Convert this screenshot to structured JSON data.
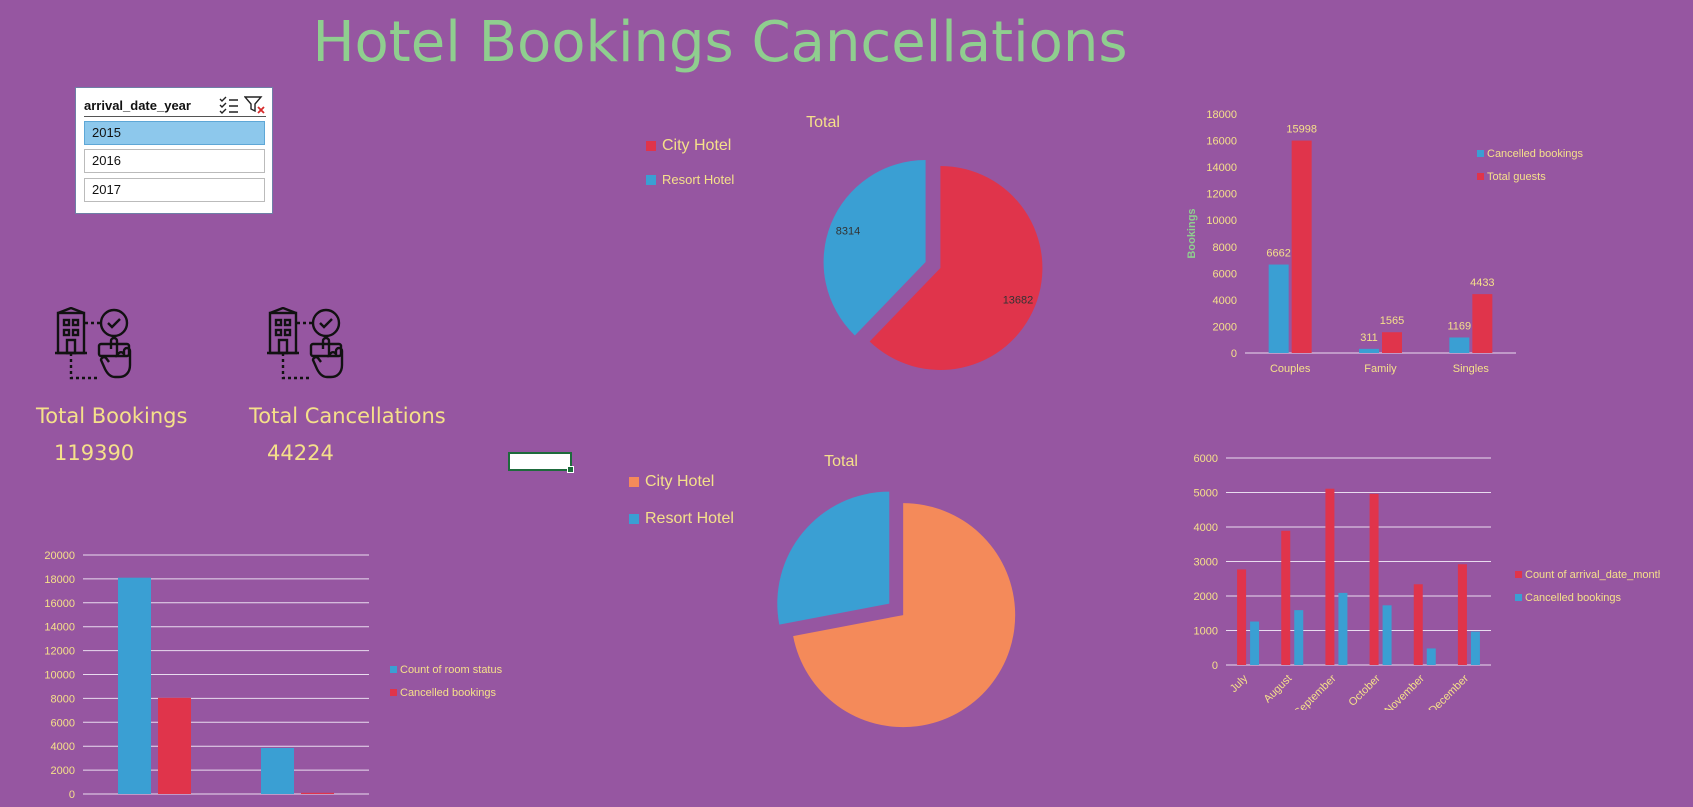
{
  "dashboard": {
    "title": "Hotel Bookings Cancellations"
  },
  "slicer": {
    "title": "arrival_date_year",
    "items": [
      "2015",
      "2016",
      "2017"
    ],
    "selected": "2015",
    "icons": [
      "multi-select-icon",
      "clear-filter-icon"
    ]
  },
  "kpis": {
    "total_bookings": {
      "label": "Total Bookings",
      "value": "119390",
      "icon": "hotel-booking-icon"
    },
    "total_cancellations": {
      "label": "Total Cancellations",
      "value": "44224",
      "icon": "hotel-booking-icon"
    }
  },
  "colors": {
    "background": "#9656a1",
    "red": "#e0344b",
    "blue": "#3a9fd3",
    "orange": "#f48a5a",
    "text": "#f5e08a",
    "title": "#8fce8f"
  },
  "chart_data": [
    {
      "id": "pie-top",
      "type": "pie",
      "title": "Total",
      "labels": [
        "City Hotel",
        "Resort Hotel"
      ],
      "values": [
        13682,
        8314
      ],
      "colors": [
        "#e0344b",
        "#3a9fd3"
      ],
      "legend": "left"
    },
    {
      "id": "bar-guests",
      "type": "bar",
      "categories": [
        "Couples",
        "Family",
        "Singles"
      ],
      "series": [
        {
          "name": "Cancelled bookings",
          "values": [
            6662,
            311,
            1169
          ],
          "color": "#3a9fd3"
        },
        {
          "name": "Total guests",
          "values": [
            15998,
            1565,
            4433
          ],
          "color": "#e0344b"
        }
      ],
      "ylabel": "Bookings",
      "ylim": [
        0,
        18000
      ],
      "yticks": [
        0,
        2000,
        4000,
        6000,
        8000,
        10000,
        12000,
        14000,
        16000,
        18000
      ],
      "grid": false,
      "legend": "right"
    },
    {
      "id": "pie-bottom",
      "type": "pie",
      "title": "Total",
      "labels": [
        "City Hotel",
        "Resort Hotel"
      ],
      "values": [
        72,
        28
      ],
      "colors": [
        "#f48a5a",
        "#3a9fd3"
      ],
      "legend": "left"
    },
    {
      "id": "bar-months",
      "type": "bar",
      "categories": [
        "July",
        "August",
        "September",
        "October",
        "November",
        "December"
      ],
      "series": [
        {
          "name": "Count of arrival_date_month",
          "values": [
            2770,
            3890,
            5110,
            4960,
            2340,
            2920
          ],
          "color": "#e0344b"
        },
        {
          "name": "Cancelled bookings",
          "values": [
            1260,
            1590,
            2090,
            1730,
            480,
            970
          ],
          "color": "#3a9fd3"
        }
      ],
      "ylim": [
        0,
        6000
      ],
      "yticks": [
        0,
        1000,
        2000,
        3000,
        4000,
        5000,
        6000
      ],
      "grid": true,
      "legend": "right"
    },
    {
      "id": "bar-rooms",
      "type": "bar",
      "categories": [
        "",
        ""
      ],
      "series": [
        {
          "name": "Count of room status",
          "values": [
            18100,
            3850
          ],
          "color": "#3a9fd3"
        },
        {
          "name": "Cancelled bookings",
          "values": [
            8050,
            100
          ],
          "color": "#e0344b"
        }
      ],
      "ylim": [
        0,
        20000
      ],
      "yticks": [
        0,
        2000,
        4000,
        6000,
        8000,
        10000,
        12000,
        14000,
        16000,
        18000,
        20000
      ],
      "grid": true,
      "legend": "right"
    }
  ]
}
